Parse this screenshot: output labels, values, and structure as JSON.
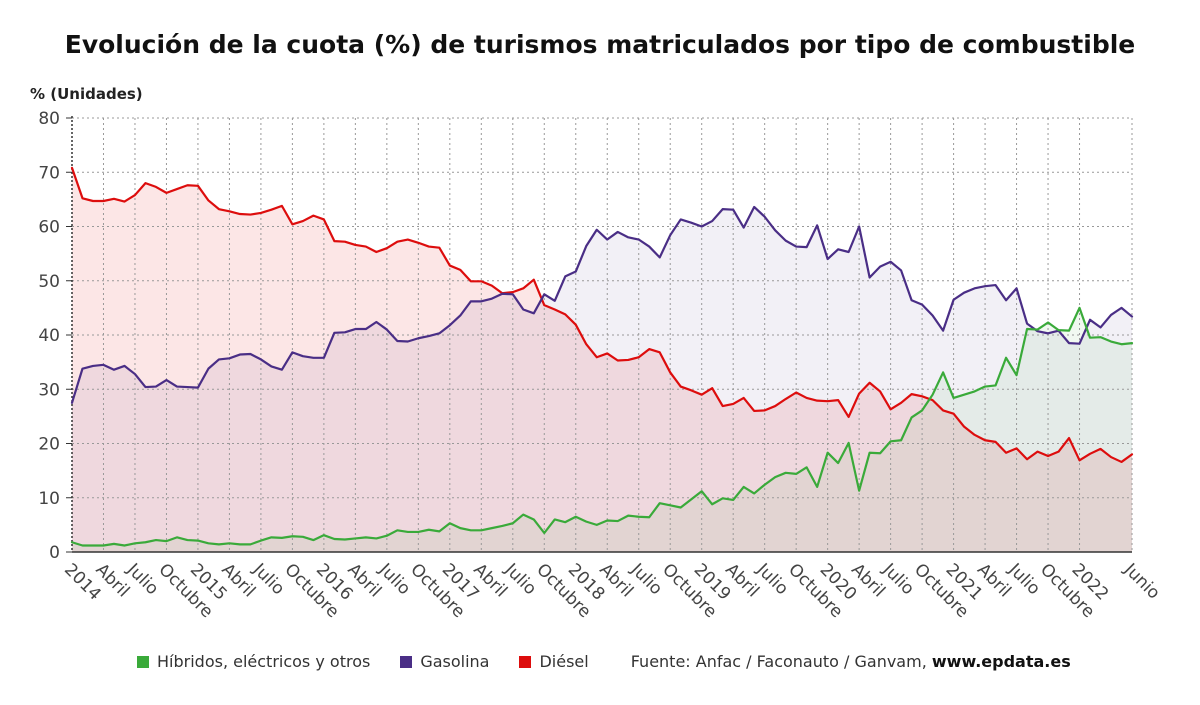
{
  "title": "Evolución de la cuota (%) de turismos matriculados por tipo de combustible",
  "unit_label": "% (Unidades)",
  "source": {
    "prefix": "Fuente: Anfac / Faconauto / Ganvam,",
    "site": "www.epdata.es"
  },
  "colors": {
    "hibridos": "#3aaa3a",
    "gasolina": "#4a2e86",
    "diesel": "#dd0d0d",
    "grid": "#999999",
    "axis": "#333333"
  },
  "chart_data": {
    "type": "line",
    "ylim": [
      0,
      80
    ],
    "y_ticks": [
      0,
      10,
      20,
      30,
      40,
      50,
      60,
      70,
      80
    ],
    "x_ticks": [
      {
        "i": 0,
        "label": "2014"
      },
      {
        "i": 3,
        "label": "Abril"
      },
      {
        "i": 6,
        "label": "Julio"
      },
      {
        "i": 9,
        "label": "Octubre"
      },
      {
        "i": 12,
        "label": "2015"
      },
      {
        "i": 15,
        "label": "Abril"
      },
      {
        "i": 18,
        "label": "Julio"
      },
      {
        "i": 21,
        "label": "Octubre"
      },
      {
        "i": 24,
        "label": "2016"
      },
      {
        "i": 27,
        "label": "Abril"
      },
      {
        "i": 30,
        "label": "Julio"
      },
      {
        "i": 33,
        "label": "Octubre"
      },
      {
        "i": 36,
        "label": "2017"
      },
      {
        "i": 39,
        "label": "Abril"
      },
      {
        "i": 42,
        "label": "Julio"
      },
      {
        "i": 45,
        "label": "Octubre"
      },
      {
        "i": 48,
        "label": "2018"
      },
      {
        "i": 51,
        "label": "Abril"
      },
      {
        "i": 54,
        "label": "Julio"
      },
      {
        "i": 57,
        "label": "Octubre"
      },
      {
        "i": 60,
        "label": "2019"
      },
      {
        "i": 63,
        "label": "Abril"
      },
      {
        "i": 66,
        "label": "Julio"
      },
      {
        "i": 69,
        "label": "Octubre"
      },
      {
        "i": 72,
        "label": "2020"
      },
      {
        "i": 75,
        "label": "Abril"
      },
      {
        "i": 78,
        "label": "Julio"
      },
      {
        "i": 81,
        "label": "Octubre"
      },
      {
        "i": 84,
        "label": "2021"
      },
      {
        "i": 87,
        "label": "Abril"
      },
      {
        "i": 90,
        "label": "Julio"
      },
      {
        "i": 93,
        "label": "Octubre"
      },
      {
        "i": 96,
        "label": "2022"
      },
      {
        "i": 101,
        "label": "Junio"
      }
    ],
    "series": [
      {
        "name": "Híbridos, eléctricos y otros",
        "key": "hibridos",
        "values": [
          1.8,
          1.2,
          1.2,
          1.2,
          1.5,
          1.2,
          1.6,
          1.8,
          2.2,
          2.0,
          2.7,
          2.2,
          2.1,
          1.6,
          1.4,
          1.6,
          1.4,
          1.4,
          2.1,
          2.7,
          2.6,
          2.9,
          2.8,
          2.2,
          3.1,
          2.4,
          2.3,
          2.5,
          2.7,
          2.5,
          3.0,
          4.0,
          3.7,
          3.7,
          4.1,
          3.8,
          5.3,
          4.4,
          4.0,
          4.0,
          4.4,
          4.8,
          5.3,
          6.9,
          6.0,
          3.5,
          6.0,
          5.5,
          6.5,
          5.6,
          5.0,
          5.8,
          5.7,
          6.7,
          6.5,
          6.4,
          9.0,
          8.6,
          8.2,
          9.7,
          11.2,
          8.8,
          9.9,
          9.6,
          12.0,
          10.8,
          12.4,
          13.8,
          14.6,
          14.4,
          15.6,
          12.0,
          18.3,
          16.4,
          20.1,
          11.3,
          18.3,
          18.2,
          20.4,
          20.6,
          24.8,
          26.1,
          29.0,
          33.1,
          28.4,
          29.0,
          29.6,
          30.5,
          30.7,
          35.8,
          32.6,
          41.1,
          41.0,
          42.3,
          40.9,
          40.8,
          45.0,
          39.5,
          39.6,
          38.8,
          38.3,
          38.5
        ]
      },
      {
        "name": "Gasolina",
        "key": "gasolina",
        "values": [
          27.5,
          33.8,
          34.3,
          34.5,
          33.6,
          34.3,
          32.8,
          30.4,
          30.5,
          31.7,
          30.5,
          30.4,
          30.3,
          33.8,
          35.5,
          35.7,
          36.4,
          36.5,
          35.5,
          34.2,
          33.6,
          36.8,
          36.1,
          35.8,
          35.8,
          40.4,
          40.5,
          41.1,
          41.1,
          42.4,
          41.0,
          38.9,
          38.8,
          39.4,
          39.8,
          40.3,
          41.8,
          43.6,
          46.2,
          46.2,
          46.7,
          47.6,
          47.5,
          44.7,
          44.0,
          47.5,
          46.3,
          50.8,
          51.7,
          56.4,
          59.4,
          57.6,
          59.0,
          58.0,
          57.6,
          56.3,
          54.3,
          58.4,
          61.3,
          60.7,
          60.0,
          61.0,
          63.2,
          63.1,
          59.8,
          63.6,
          61.8,
          59.3,
          57.4,
          56.3,
          56.2,
          60.2,
          54.0,
          55.8,
          55.3,
          60.0,
          50.6,
          52.6,
          53.5,
          51.9,
          46.4,
          45.6,
          43.6,
          40.8,
          46.5,
          47.8,
          48.6,
          49.0,
          49.2,
          46.4,
          48.6,
          42.1,
          40.7,
          40.3,
          40.8,
          38.5,
          38.4,
          42.8,
          41.4,
          43.7,
          45.0,
          43.4
        ]
      },
      {
        "name": "Diésel",
        "key": "diesel",
        "values": [
          70.8,
          65.2,
          64.7,
          64.7,
          65.1,
          64.6,
          65.8,
          68.0,
          67.3,
          66.2,
          66.9,
          67.6,
          67.5,
          64.8,
          63.2,
          62.8,
          62.3,
          62.2,
          62.5,
          63.1,
          63.8,
          60.4,
          61.0,
          62.0,
          61.3,
          57.3,
          57.2,
          56.6,
          56.3,
          55.3,
          56.0,
          57.2,
          57.6,
          57.0,
          56.3,
          56.1,
          52.8,
          52.0,
          49.9,
          49.9,
          49.1,
          47.7,
          47.9,
          48.6,
          50.2,
          45.5,
          44.7,
          43.8,
          41.9,
          38.3,
          35.9,
          36.6,
          35.3,
          35.4,
          35.9,
          37.4,
          36.8,
          33.1,
          30.5,
          29.8,
          29.0,
          30.2,
          26.9,
          27.3,
          28.4,
          26.0,
          26.1,
          26.9,
          28.2,
          29.4,
          28.4,
          27.9,
          27.8,
          28.0,
          24.9,
          29.2,
          31.2,
          29.6,
          26.3,
          27.5,
          29.1,
          28.7,
          28.0,
          26.1,
          25.5,
          23.1,
          21.6,
          20.6,
          20.3,
          18.3,
          19.1,
          17.1,
          18.5,
          17.7,
          18.5,
          21.0,
          16.9,
          18.1,
          19.0,
          17.5,
          16.6,
          18.0
        ]
      }
    ]
  }
}
